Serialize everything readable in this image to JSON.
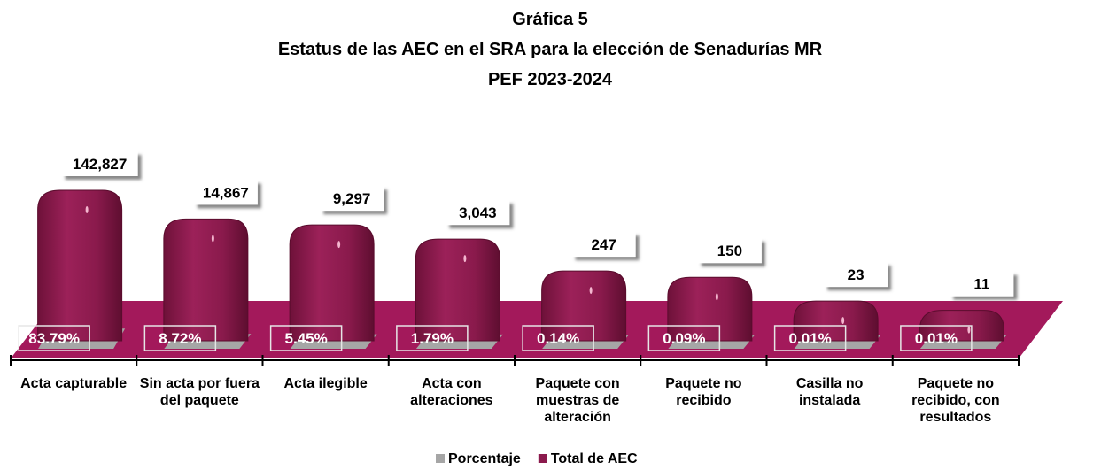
{
  "chart_data": {
    "type": "bar",
    "title": [
      "Gráfica 5",
      "Estatus de las AEC en el SRA para la elección de Senadurías MR",
      "PEF 2023-2024"
    ],
    "categories": [
      "Acta capturable",
      "Sin acta por fuera del paquete",
      "Acta ilegible",
      "Acta con alteraciones",
      "Paquete con muestras de alteración",
      "Paquete no recibido",
      "Casilla no instalada",
      "Paquete no recibido, con resultados"
    ],
    "series": [
      {
        "name": "Porcentaje",
        "color": "#a6a6a6",
        "values": [
          83.79,
          8.72,
          5.45,
          1.79,
          0.14,
          0.09,
          0.01,
          0.01
        ],
        "value_labels": [
          "83.79%",
          "8.72%",
          "5.45%",
          "1.79%",
          "0.14%",
          "0.09%",
          "0.01%",
          "0.01%"
        ]
      },
      {
        "name": "Total de AEC",
        "color": "#8b1a4d",
        "values": [
          142827,
          14867,
          9297,
          3043,
          247,
          150,
          23,
          11
        ],
        "value_labels": [
          "142,827",
          "14,867",
          "9,297",
          "3,043",
          "247",
          "150",
          "23",
          "11"
        ]
      }
    ],
    "log_scale": true,
    "floor_color": "#a3195b"
  }
}
